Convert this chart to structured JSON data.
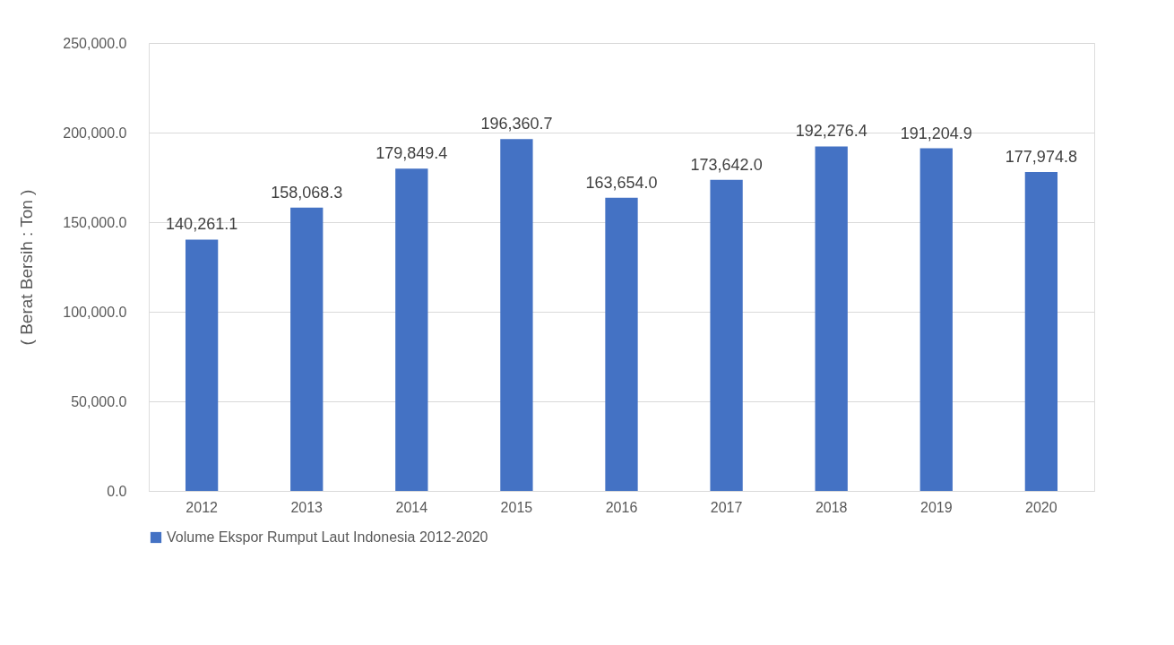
{
  "chart_data": {
    "type": "bar",
    "ylabel": "( Berat Bersih : Ton )",
    "categories": [
      "2012",
      "2013",
      "2014",
      "2015",
      "2016",
      "2017",
      "2018",
      "2019",
      "2020"
    ],
    "series": [
      {
        "name": "Volume Ekspor Rumput Laut Indonesia 2012-2020",
        "color": "#4472c4",
        "values": [
          140261.1,
          158068.3,
          179849.4,
          196360.7,
          163654.0,
          173642.0,
          192276.4,
          191204.9,
          177974.8
        ],
        "value_labels": [
          "140,261.1",
          "158,068.3",
          "179,849.4",
          "196,360.7",
          "163,654.0",
          "173,642.0",
          "192,276.4",
          "191,204.9",
          "177,974.8"
        ]
      }
    ],
    "ylim": [
      0,
      250000
    ],
    "yticks": [
      {
        "value": 0,
        "label": "0.0"
      },
      {
        "value": 50000,
        "label": "50,000.0"
      },
      {
        "value": 100000,
        "label": "100,000.0"
      },
      {
        "value": 150000,
        "label": "150,000.0"
      },
      {
        "value": 200000,
        "label": "200,000.0"
      },
      {
        "value": 250000,
        "label": "250,000.0"
      }
    ],
    "grid": "y",
    "legend": "bottom"
  }
}
